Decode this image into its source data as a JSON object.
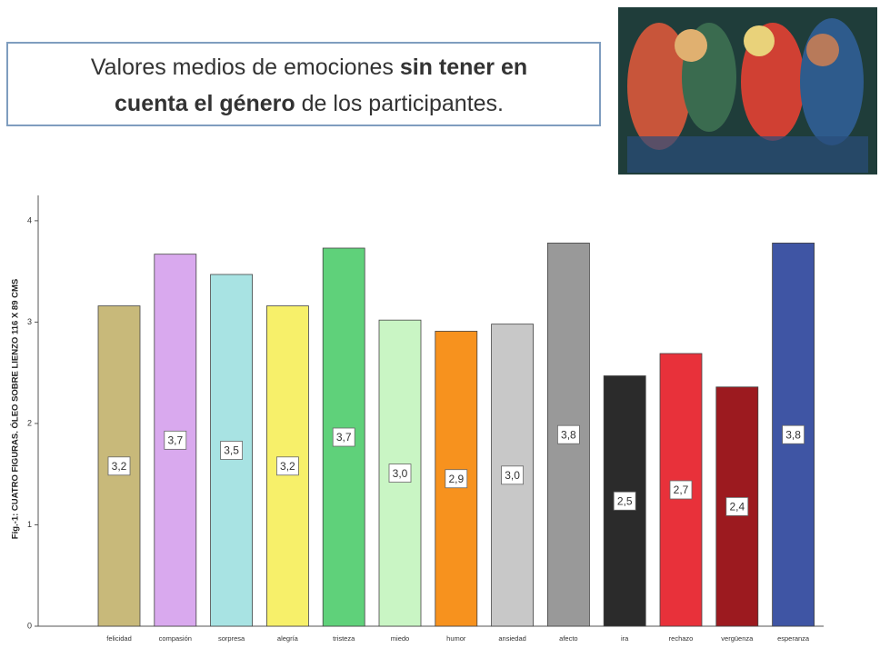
{
  "chart_data": {
    "type": "bar",
    "title_lines": [
      [
        {
          "text": "Valores medios de emociones ",
          "bold": false
        },
        {
          "text": "sin tener en",
          "bold": true
        }
      ],
      [
        {
          "text": "cuenta el género",
          "bold": true
        },
        {
          "text": " de los participantes.",
          "bold": false
        }
      ]
    ],
    "y_label": "Fig.-1: CUATRO FIGURAS. ÓLEO SOBRE LIENZO 116 X 89 CMS",
    "categories": [
      "felicidad",
      "compasión",
      "sorpresa",
      "alegría",
      "tristeza",
      "miedo",
      "humor",
      "ansiedad",
      "afecto",
      "ira",
      "rechazo",
      "vergüenza",
      "esperanza"
    ],
    "values": [
      3.16,
      3.67,
      3.47,
      3.16,
      3.73,
      3.02,
      2.91,
      2.98,
      3.78,
      2.47,
      2.69,
      2.36,
      3.78
    ],
    "value_labels": [
      "3,2",
      "3,7",
      "3,5",
      "3,2",
      "3,7",
      "3,0",
      "2,9",
      "3,0",
      "3,8",
      "2,5",
      "2,7",
      "2,4",
      "3,8"
    ],
    "colors": [
      "#c8b97a",
      "#d9a9ee",
      "#a8e3e3",
      "#f7f06a",
      "#5fd17a",
      "#c9f5c4",
      "#f7921e",
      "#c8c8c8",
      "#999999",
      "#2b2b2b",
      "#e8313a",
      "#9c1a1f",
      "#3f55a4"
    ],
    "ylim": [
      0,
      4.25
    ],
    "yticks": [
      0,
      1,
      2,
      3,
      4
    ],
    "grid": false
  }
}
